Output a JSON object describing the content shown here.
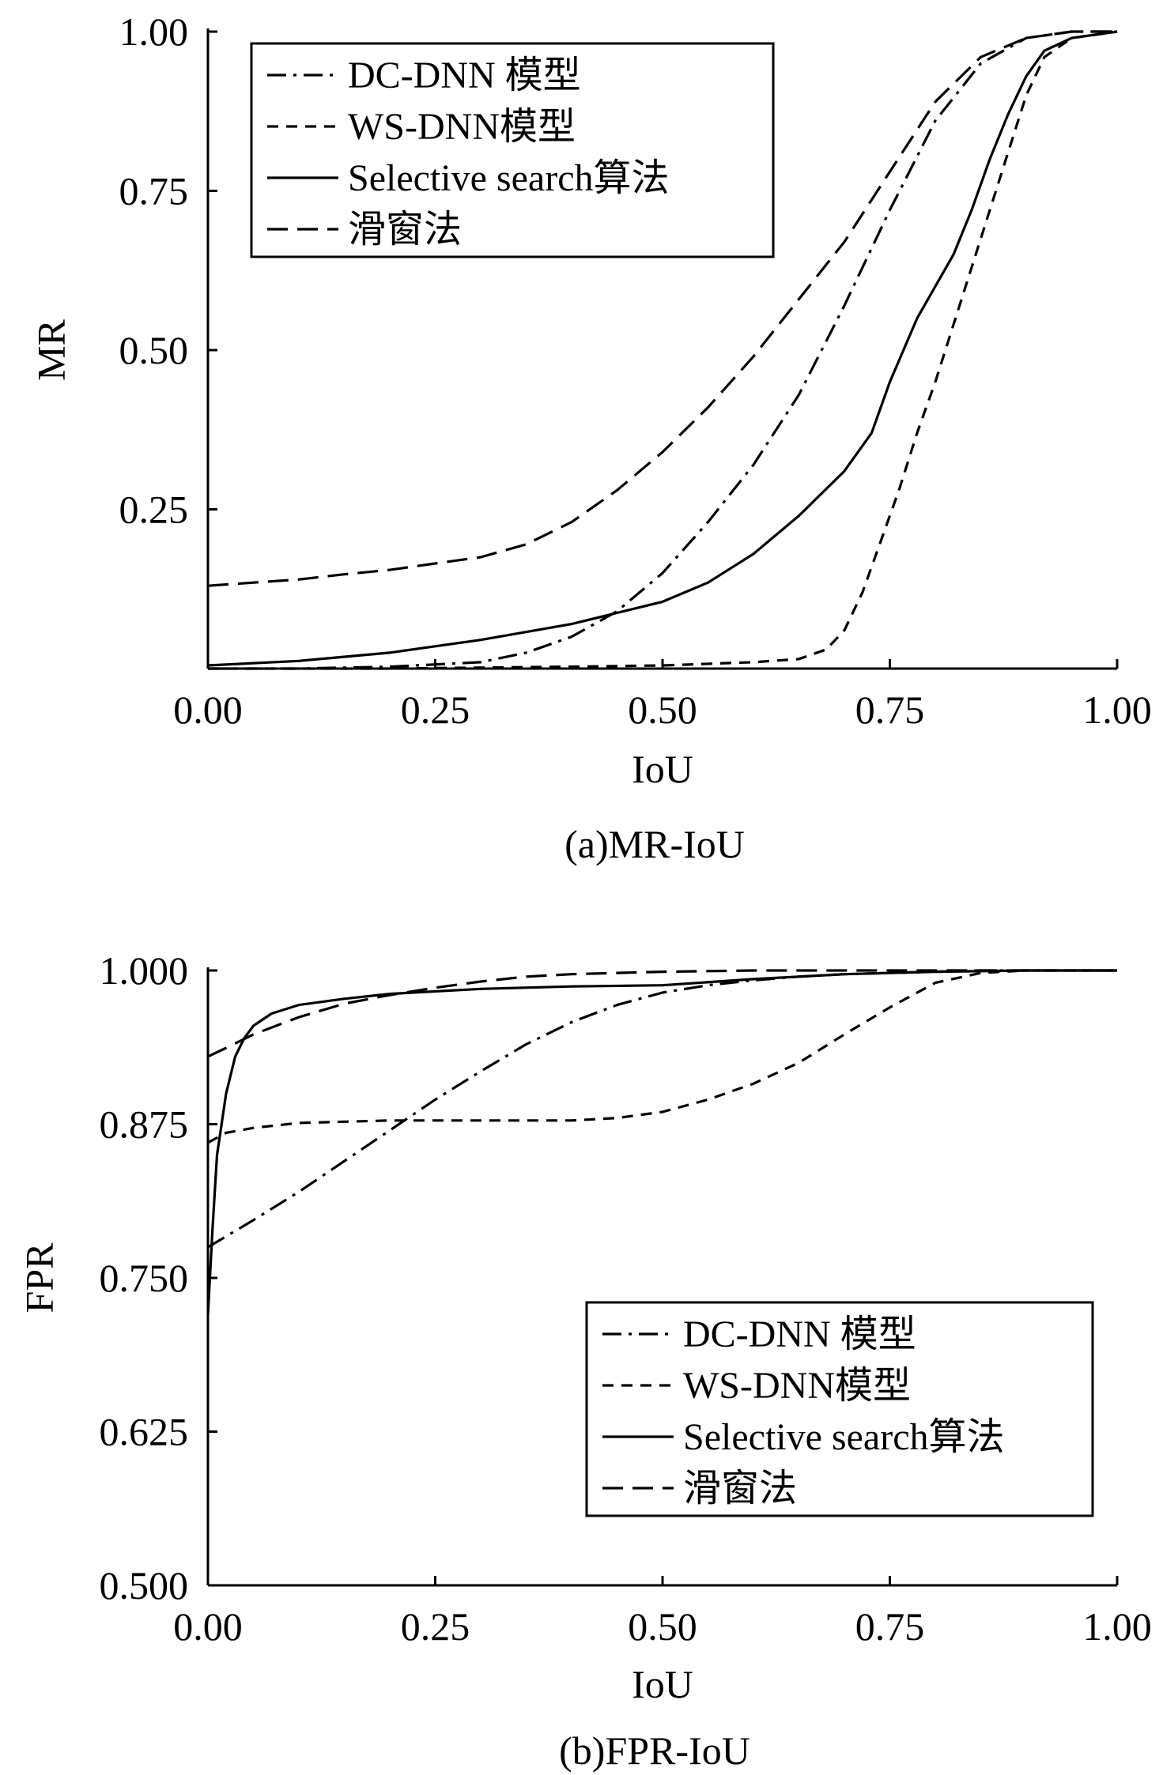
{
  "chart_data": [
    {
      "type": "line",
      "caption": "(a)MR-IoU",
      "xlabel": "IoU",
      "ylabel": "MR",
      "xlim": [
        0,
        1
      ],
      "ylim": [
        0,
        1
      ],
      "xticks": [
        "0.00",
        "0.25",
        "0.50",
        "0.75",
        "1.00"
      ],
      "yticks": [
        "0.25",
        "0.50",
        "0.75",
        "1.00"
      ],
      "grid": false,
      "legend_position": "top-left",
      "series": [
        {
          "name": "DC-DNN 模型",
          "dash": "dashdot",
          "x": [
            0,
            0.1,
            0.2,
            0.3,
            0.35,
            0.4,
            0.45,
            0.5,
            0.55,
            0.6,
            0.65,
            0.7,
            0.75,
            0.8,
            0.85,
            0.9,
            0.95,
            1.0
          ],
          "y": [
            0,
            0,
            0.003,
            0.01,
            0.025,
            0.05,
            0.09,
            0.15,
            0.23,
            0.32,
            0.43,
            0.57,
            0.72,
            0.86,
            0.95,
            0.99,
            1.0,
            1.0
          ]
        },
        {
          "name": "WS-DNN模型",
          "dash": "dashed-short",
          "x": [
            0,
            0.2,
            0.4,
            0.5,
            0.6,
            0.65,
            0.68,
            0.7,
            0.72,
            0.74,
            0.76,
            0.78,
            0.8,
            0.82,
            0.84,
            0.86,
            0.88,
            0.9,
            0.92,
            0.95,
            1.0
          ],
          "y": [
            0,
            0,
            0.003,
            0.005,
            0.01,
            0.015,
            0.03,
            0.06,
            0.12,
            0.2,
            0.28,
            0.37,
            0.45,
            0.54,
            0.63,
            0.72,
            0.81,
            0.9,
            0.96,
            0.99,
            1.0
          ]
        },
        {
          "name": "Selective search算法",
          "dash": "solid",
          "x": [
            0,
            0.1,
            0.2,
            0.3,
            0.4,
            0.5,
            0.55,
            0.6,
            0.65,
            0.7,
            0.73,
            0.75,
            0.78,
            0.82,
            0.84,
            0.86,
            0.88,
            0.9,
            0.92,
            0.95,
            1.0
          ],
          "y": [
            0.005,
            0.012,
            0.025,
            0.045,
            0.07,
            0.105,
            0.135,
            0.18,
            0.24,
            0.31,
            0.37,
            0.45,
            0.55,
            0.65,
            0.72,
            0.8,
            0.87,
            0.93,
            0.97,
            0.99,
            1.0
          ]
        },
        {
          "name": "滑窗法",
          "dash": "dashed-long",
          "x": [
            0,
            0.05,
            0.1,
            0.15,
            0.2,
            0.25,
            0.3,
            0.35,
            0.4,
            0.45,
            0.5,
            0.55,
            0.6,
            0.65,
            0.7,
            0.75,
            0.8,
            0.85,
            0.9,
            0.95,
            1.0
          ],
          "y": [
            0.13,
            0.135,
            0.14,
            0.148,
            0.155,
            0.165,
            0.175,
            0.195,
            0.23,
            0.28,
            0.34,
            0.41,
            0.49,
            0.58,
            0.67,
            0.78,
            0.89,
            0.96,
            0.99,
            1.0,
            1.0
          ]
        }
      ]
    },
    {
      "type": "line",
      "caption": "(b)FPR-IoU",
      "xlabel": "IoU",
      "ylabel": "FPR",
      "xlim": [
        0,
        1
      ],
      "ylim": [
        0.5,
        1
      ],
      "xticks": [
        "0.00",
        "0.25",
        "0.50",
        "0.75",
        "1.00"
      ],
      "yticks": [
        "0.500",
        "0.625",
        "0.750",
        "0.875",
        "1.000"
      ],
      "grid": false,
      "legend_position": "bottom-right",
      "series": [
        {
          "name": "DC-DNN 模型",
          "dash": "dashdot",
          "x": [
            0,
            0.05,
            0.1,
            0.15,
            0.2,
            0.25,
            0.3,
            0.35,
            0.4,
            0.45,
            0.5,
            0.55,
            0.6,
            0.65,
            0.7,
            0.75,
            0.8,
            0.85,
            0.9,
            1.0
          ],
          "y": [
            0.775,
            0.797,
            0.82,
            0.845,
            0.87,
            0.895,
            0.918,
            0.94,
            0.958,
            0.972,
            0.982,
            0.988,
            0.992,
            0.995,
            0.997,
            0.998,
            0.999,
            1.0,
            1.0,
            1.0
          ]
        },
        {
          "name": "WS-DNN模型",
          "dash": "dashed-short",
          "x": [
            0,
            0.02,
            0.05,
            0.1,
            0.2,
            0.3,
            0.4,
            0.45,
            0.5,
            0.55,
            0.6,
            0.65,
            0.7,
            0.75,
            0.8,
            0.85,
            0.9,
            1.0
          ],
          "y": [
            0.86,
            0.868,
            0.872,
            0.876,
            0.878,
            0.878,
            0.878,
            0.88,
            0.885,
            0.895,
            0.908,
            0.925,
            0.948,
            0.97,
            0.99,
            0.998,
            1.0,
            1.0
          ]
        },
        {
          "name": "Selective search算法",
          "dash": "solid",
          "x": [
            0,
            0.005,
            0.01,
            0.02,
            0.03,
            0.04,
            0.05,
            0.07,
            0.1,
            0.15,
            0.2,
            0.3,
            0.4,
            0.5,
            0.6,
            0.7,
            0.8,
            0.9,
            1.0
          ],
          "y": [
            0.72,
            0.79,
            0.85,
            0.9,
            0.93,
            0.945,
            0.955,
            0.965,
            0.972,
            0.977,
            0.981,
            0.985,
            0.987,
            0.988,
            0.993,
            0.997,
            0.999,
            1.0,
            1.0
          ]
        },
        {
          "name": "滑窗法",
          "dash": "dashed-long",
          "x": [
            0,
            0.02,
            0.05,
            0.1,
            0.15,
            0.2,
            0.25,
            0.3,
            0.35,
            0.4,
            0.45,
            0.5,
            0.6,
            0.7,
            0.8,
            0.9,
            1.0
          ],
          "y": [
            0.93,
            0.937,
            0.948,
            0.962,
            0.973,
            0.98,
            0.986,
            0.991,
            0.995,
            0.997,
            0.998,
            0.999,
            1.0,
            1.0,
            1.0,
            1.0,
            1.0
          ]
        }
      ]
    }
  ]
}
